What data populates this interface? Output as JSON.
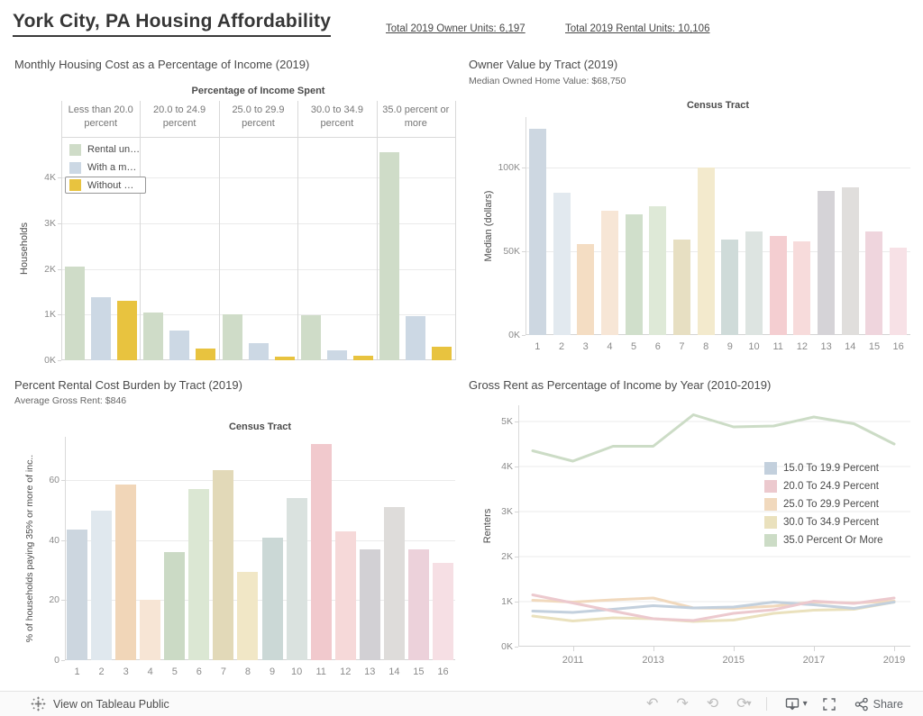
{
  "header": {
    "title": "York City, PA Housing Affordability",
    "stats": [
      {
        "label": "Total 2019 Owner Units: 6,197"
      },
      {
        "label": "Total 2019 Rental Units: 10,106"
      }
    ]
  },
  "footer": {
    "view_label": "View on Tableau Public",
    "share_label": "Share",
    "toolbar_icons": [
      "tableau-logo",
      "undo",
      "redo",
      "replay",
      "refresh",
      "refresh-caret",
      "download",
      "download-caret",
      "fullscreen",
      "share"
    ]
  },
  "colors": {
    "selected_gold": "#e8c33f",
    "gridline": "#ebebeb",
    "axis_text": "#8b8b8b"
  },
  "chart_data": [
    {
      "id": "monthly-housing-cost",
      "type": "bar",
      "title": "Monthly Housing Cost as a Percentage of Income (2019)",
      "column_header": "Percentage of Income Spent",
      "categories": [
        "Less than 20.0 percent",
        "20.0 to 24.9 percent",
        "25.0 to 29.9 percent",
        "30.0 to 34.9 percent",
        "35.0 percent or more"
      ],
      "ylabel": "Households",
      "ylim": [
        0,
        4890
      ],
      "yticks": [
        {
          "v": 0,
          "label": "0K"
        },
        {
          "v": 1000,
          "label": "1K"
        },
        {
          "v": 2000,
          "label": "2K"
        },
        {
          "v": 3000,
          "label": "3K"
        },
        {
          "v": 4000,
          "label": "4K"
        }
      ],
      "legend_position": "top-left-inside",
      "series": [
        {
          "name": "Rental un…",
          "color": "#cfdcc8",
          "values": [
            2050,
            1050,
            1000,
            980,
            4550
          ]
        },
        {
          "name": "With a m…",
          "color": "#ccd8e4",
          "values": [
            1380,
            650,
            370,
            215,
            965
          ]
        },
        {
          "name": "Without …",
          "color": "#e8c33f",
          "values": [
            1300,
            255,
            80,
            95,
            290
          ],
          "selected": true
        }
      ]
    },
    {
      "id": "owner-value-by-tract",
      "type": "bar",
      "title": "Owner Value by Tract (2019)",
      "subtitle": "Median Owned Home Value: $68,750",
      "column_header": "Census Tract",
      "categories": [
        "1",
        "2",
        "3",
        "4",
        "5",
        "6",
        "7",
        "8",
        "9",
        "10",
        "11",
        "12",
        "13",
        "14",
        "15",
        "16"
      ],
      "ylabel": "Median (dollars)",
      "ylim": [
        0,
        130000
      ],
      "yticks": [
        {
          "v": 0,
          "label": "0K"
        },
        {
          "v": 50000,
          "label": "50K"
        },
        {
          "v": 100000,
          "label": "100K"
        }
      ],
      "values": [
        123000,
        85000,
        54000,
        74000,
        72000,
        77000,
        57000,
        100000,
        57000,
        62000,
        59000,
        56000,
        86000,
        88000,
        62000,
        52000
      ],
      "bar_colors": [
        "#cdd7e1",
        "#e2e9ef",
        "#f4ddc3",
        "#f7e6d6",
        "#d0dfcb",
        "#dee9d7",
        "#e7dfc2",
        "#f3eacd",
        "#cfdbd9",
        "#dde4e1",
        "#f4ced1",
        "#f7dbdb",
        "#d5d3d7",
        "#e0dedc",
        "#efd5dd",
        "#f7e1e6"
      ]
    },
    {
      "id": "percent-rental-cost-burden",
      "type": "bar",
      "title": "Percent Rental Cost Burden by Tract (2019)",
      "subtitle": "Average Gross Rent: $846",
      "column_header": "Census Tract",
      "categories": [
        "1",
        "2",
        "3",
        "4",
        "5",
        "6",
        "7",
        "8",
        "9",
        "10",
        "11",
        "12",
        "13",
        "14",
        "15",
        "16"
      ],
      "ylabel": "% of households paying 35% or more of inc..",
      "ylim": [
        0,
        74.5
      ],
      "yticks": [
        {
          "v": 0,
          "label": "0"
        },
        {
          "v": 20,
          "label": "20"
        },
        {
          "v": 40,
          "label": "40"
        },
        {
          "v": 60,
          "label": "60"
        }
      ],
      "values": [
        43.5,
        50,
        58.5,
        20,
        36,
        57,
        63.5,
        29.5,
        41,
        54,
        72,
        43,
        37,
        51,
        37,
        32.5
      ],
      "bar_colors": [
        "#ccd6df",
        "#e0e8ee",
        "#f1d6b8",
        "#f7e5d5",
        "#cbdac5",
        "#dbe7d3",
        "#e2d9b8",
        "#f1e7c6",
        "#cbd8d6",
        "#dae2df",
        "#f1c9cd",
        "#f6d9d9",
        "#d2d0d4",
        "#dedcda",
        "#ecd1da",
        "#f6dfe4"
      ]
    },
    {
      "id": "gross-rent-by-year",
      "type": "line",
      "title": "Gross Rent as Percentage of Income by Year (2010-2019)",
      "ylabel": "Renters",
      "ylim": [
        0,
        5360
      ],
      "yticks": [
        {
          "v": 0,
          "label": "0K"
        },
        {
          "v": 1000,
          "label": "1K"
        },
        {
          "v": 2000,
          "label": "2K"
        },
        {
          "v": 3000,
          "label": "3K"
        },
        {
          "v": 4000,
          "label": "4K"
        },
        {
          "v": 5000,
          "label": "5K"
        }
      ],
      "x": [
        2010,
        2011,
        2012,
        2013,
        2014,
        2015,
        2016,
        2017,
        2018,
        2019
      ],
      "xticks": [
        2011,
        2013,
        2015,
        2017,
        2019
      ],
      "legend_position": "right-inside",
      "draw_order": [
        2,
        3,
        0,
        1,
        4
      ],
      "series": [
        {
          "name": "15.0 To 19.9 Percent",
          "color": "#c3d0dd",
          "values": [
            790,
            760,
            830,
            910,
            860,
            880,
            990,
            930,
            850,
            990
          ]
        },
        {
          "name": "20.0 To 24.9 Percent",
          "color": "#ecc9ce",
          "values": [
            1150,
            970,
            790,
            620,
            580,
            740,
            820,
            1010,
            960,
            1080
          ]
        },
        {
          "name": "25.0 To 29.9 Percent",
          "color": "#f1d9bd",
          "values": [
            1030,
            990,
            1040,
            1080,
            860,
            850,
            900,
            990,
            970,
            1010
          ]
        },
        {
          "name": "30.0 To 34.9 Percent",
          "color": "#eae1bd",
          "values": [
            680,
            570,
            640,
            620,
            560,
            590,
            740,
            810,
            830,
            990
          ]
        },
        {
          "name": "35.0 Percent Or More",
          "color": "#ccdcc6",
          "values": [
            4350,
            4120,
            4450,
            4450,
            5150,
            4880,
            4900,
            5100,
            4950,
            4500
          ]
        }
      ]
    }
  ]
}
